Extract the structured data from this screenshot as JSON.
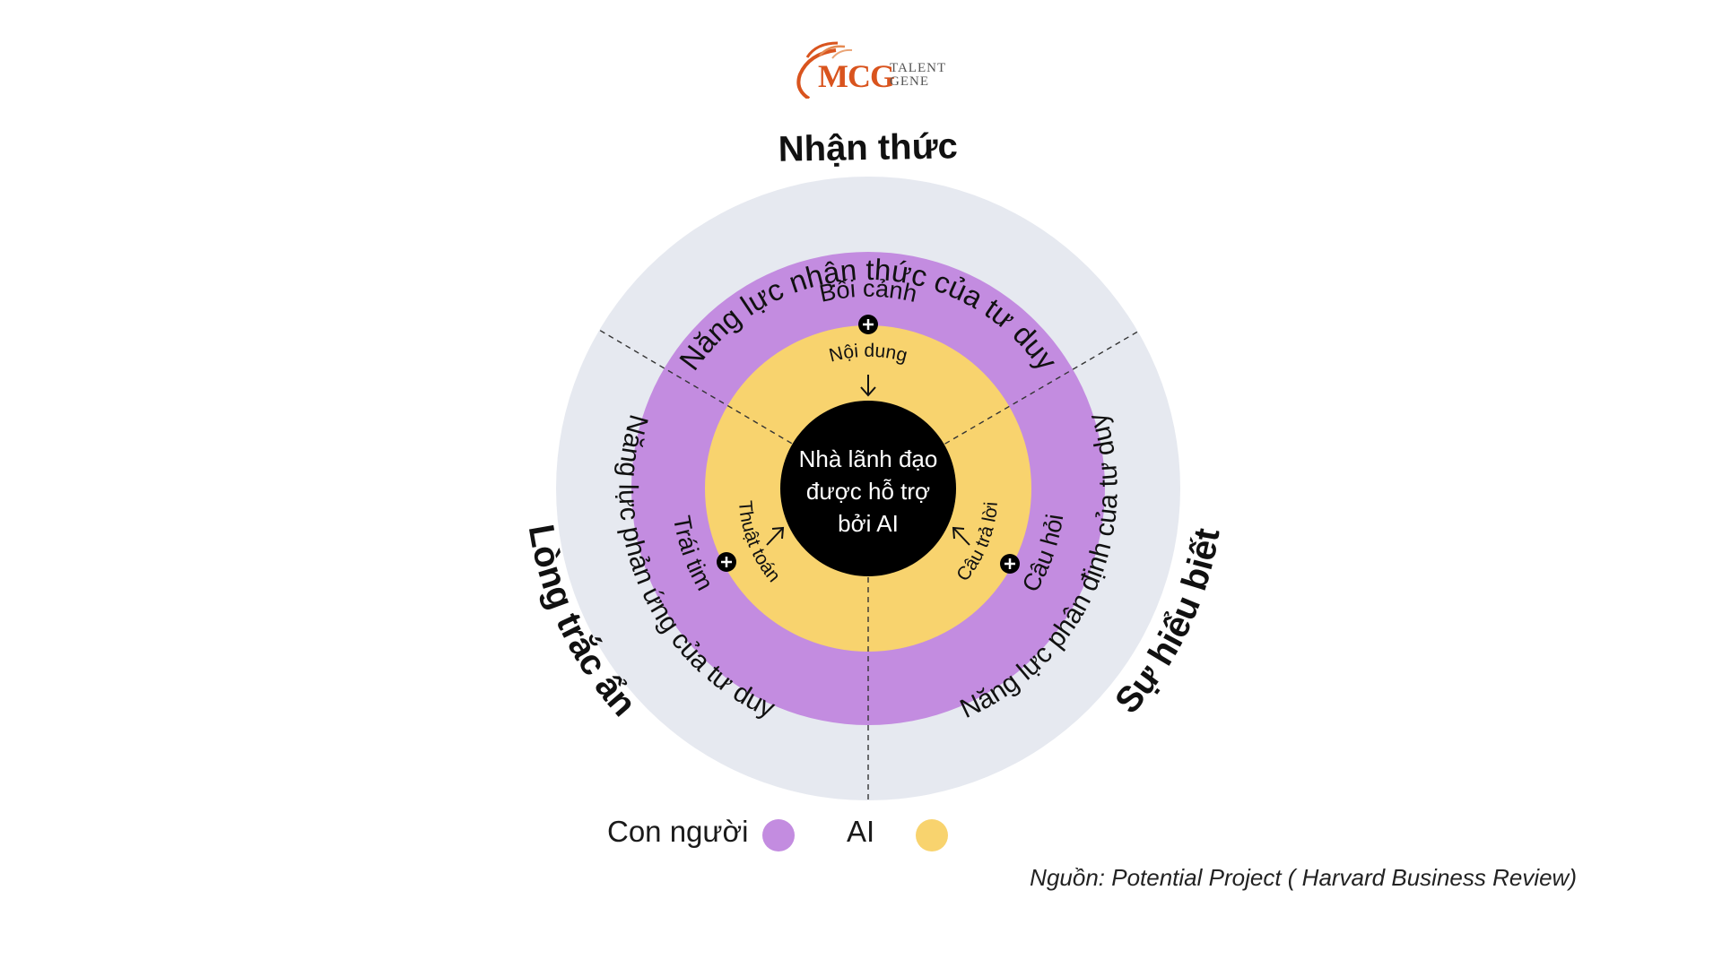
{
  "logo": {
    "brand": "MCG",
    "line1": "TALENT",
    "line2": "GENE"
  },
  "diagram": {
    "center": {
      "lines": [
        "Nhà lãnh đạo",
        "được hỗ trợ",
        "bởi AI"
      ]
    },
    "outer_titles": {
      "top": "Nhận thức",
      "left": "Lòng trắc ẩn",
      "right": "Sự hiểu biết"
    },
    "ring_labels": {
      "top": "Năng lực nhận thức của tư duy",
      "left": "Năng lực phản ứng của tư duy",
      "right": "Năng lực phân định của tư duy"
    },
    "human_labels": {
      "top": "Bối cảnh",
      "left": "Trái tim",
      "right": "Câu hỏi"
    },
    "ai_labels": {
      "top": "Nội dung",
      "left": "Thuật toán",
      "right": "Câu trả lời"
    }
  },
  "legend": {
    "human_label": "Con người",
    "ai_label": "AI"
  },
  "colors": {
    "outer_ring": "#e6e9f0",
    "human": "#c38ce0",
    "ai": "#f8d36e",
    "center": "#000000",
    "text": "#111111"
  },
  "source": "Nguồn: Potential Project ( Harvard Business Review)"
}
